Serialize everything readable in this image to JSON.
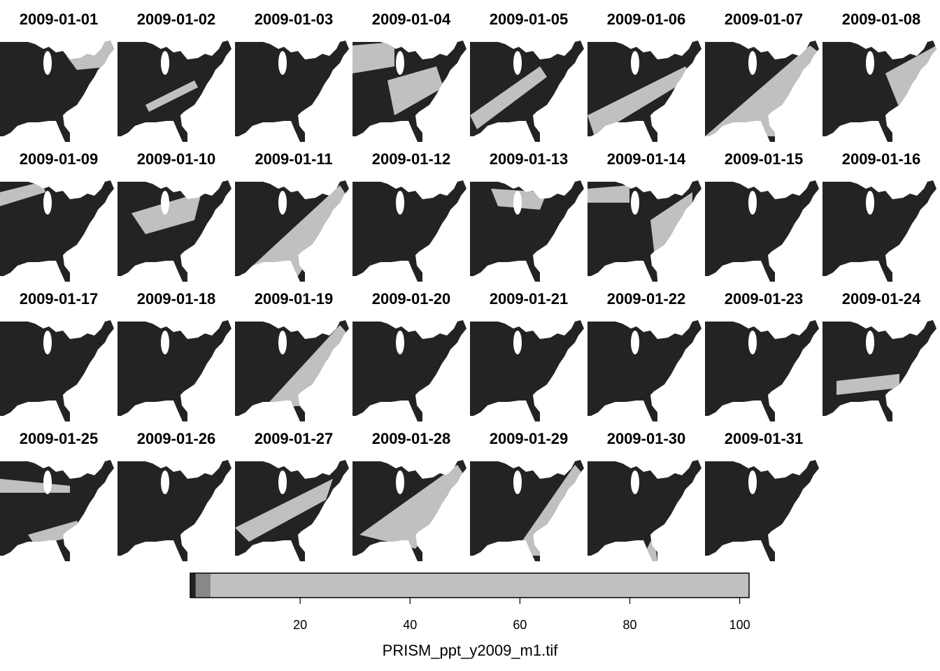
{
  "panels": [
    {
      "title": "2009-01-01"
    },
    {
      "title": "2009-01-02"
    },
    {
      "title": "2009-01-03"
    },
    {
      "title": "2009-01-04"
    },
    {
      "title": "2009-01-05"
    },
    {
      "title": "2009-01-06"
    },
    {
      "title": "2009-01-07"
    },
    {
      "title": "2009-01-08"
    },
    {
      "title": "2009-01-09"
    },
    {
      "title": "2009-01-10"
    },
    {
      "title": "2009-01-11"
    },
    {
      "title": "2009-01-12"
    },
    {
      "title": "2009-01-13"
    },
    {
      "title": "2009-01-14"
    },
    {
      "title": "2009-01-15"
    },
    {
      "title": "2009-01-16"
    },
    {
      "title": "2009-01-17"
    },
    {
      "title": "2009-01-18"
    },
    {
      "title": "2009-01-19"
    },
    {
      "title": "2009-01-20"
    },
    {
      "title": "2009-01-21"
    },
    {
      "title": "2009-01-22"
    },
    {
      "title": "2009-01-23"
    },
    {
      "title": "2009-01-24"
    },
    {
      "title": "2009-01-25"
    },
    {
      "title": "2009-01-26"
    },
    {
      "title": "2009-01-27"
    },
    {
      "title": "2009-01-28"
    },
    {
      "title": "2009-01-29"
    },
    {
      "title": "2009-01-30"
    },
    {
      "title": "2009-01-31"
    }
  ],
  "legend": {
    "title": "PRISM_ppt_y2009_m1.tif",
    "lim": [
      0,
      101.7
    ],
    "ticks": [
      20,
      40,
      60,
      80,
      100
    ],
    "bins": [
      {
        "from": 0,
        "to": 1,
        "color": "#222222"
      },
      {
        "from": 1,
        "to": 3.7,
        "color": "#888888"
      },
      {
        "from": 3.7,
        "to": 101.7,
        "color": "#c0c0c0"
      }
    ]
  }
}
